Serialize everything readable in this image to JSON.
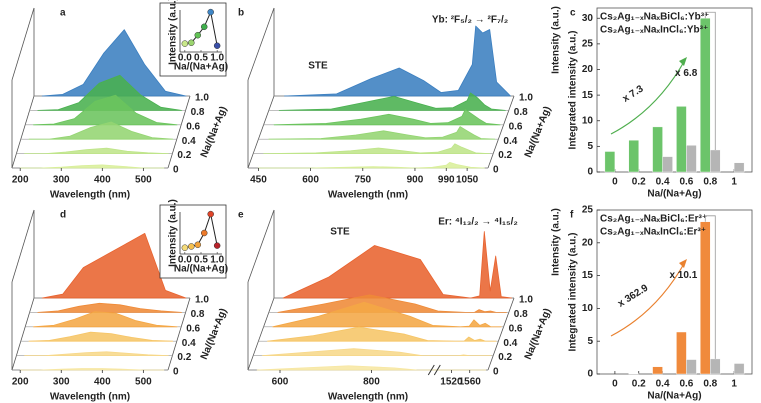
{
  "chart_data": [
    {
      "type": "waterfall",
      "panel_label": "a",
      "x_label": "Wavelength (nm)",
      "z_label": "Na/(Na+Ag)",
      "xlim": [
        180,
        560
      ],
      "xticks": [
        200,
        300,
        400,
        500
      ],
      "ylim": [
        0,
        100
      ],
      "x": [
        200,
        250,
        300,
        350,
        400,
        450,
        500,
        550
      ],
      "series": [
        {
          "name": "0",
          "color": "#d9ef9b",
          "values": [
            0,
            0,
            1,
            3,
            4,
            2,
            0,
            0
          ]
        },
        {
          "name": "0.2",
          "color": "#bfe58a",
          "values": [
            0,
            0,
            2,
            5,
            7,
            3,
            1,
            0
          ]
        },
        {
          "name": "0.4",
          "color": "#94d572",
          "values": [
            0,
            0,
            4,
            15,
            22,
            10,
            2,
            0
          ]
        },
        {
          "name": "0.6",
          "color": "#6bc45d",
          "values": [
            0,
            1,
            8,
            30,
            38,
            15,
            3,
            0
          ]
        },
        {
          "name": "0.8",
          "color": "#49b14f",
          "values": [
            0,
            1,
            10,
            35,
            45,
            20,
            4,
            0
          ]
        },
        {
          "name": "1.0",
          "color": "#3b7fc0",
          "values": [
            0,
            2,
            15,
            55,
            85,
            40,
            6,
            0
          ]
        }
      ],
      "inset": {
        "type": "scatter",
        "x_label": "Na/(Na+Ag)",
        "y_label": "Intensity (a.u.)",
        "xlim": [
          -0.15,
          1.15
        ],
        "xticks": [
          {
            "value": 0,
            "label": "0.0"
          },
          {
            "value": 0.5,
            "label": "0.5"
          },
          {
            "value": 1,
            "label": "1.0"
          }
        ],
        "ylim": [
          0,
          100
        ],
        "x": [
          0,
          0.2,
          0.4,
          0.6,
          0.8,
          1
        ],
        "values": [
          20,
          22,
          40,
          60,
          95,
          15
        ],
        "colors": [
          "#c9e88a",
          "#9bd56f",
          "#62c256",
          "#3fae4c",
          "#3f86c6",
          "#3a4fa8"
        ],
        "line_color": "#222"
      }
    },
    {
      "type": "waterfall",
      "panel_label": "b",
      "x_label": "Wavelength (nm)",
      "y_label": "Intensity (a.u.)",
      "z_label": "Na/(Na+Ag)",
      "xlim": [
        420,
        1110
      ],
      "xticks": [
        450,
        600,
        750,
        900,
        990,
        1050
      ],
      "ylim": [
        0,
        100
      ],
      "x": [
        450,
        600,
        700,
        780,
        850,
        900,
        950,
        990,
        1000,
        1020,
        1040,
        1060,
        1100
      ],
      "series": [
        {
          "name": "0",
          "color": "#d9ef9b",
          "values": [
            0,
            0,
            1,
            2,
            1,
            0,
            1,
            4,
            8,
            5,
            3,
            1,
            0
          ]
        },
        {
          "name": "0.2",
          "color": "#bfe58a",
          "values": [
            0,
            1,
            4,
            8,
            4,
            1,
            2,
            8,
            14,
            9,
            5,
            1,
            0
          ]
        },
        {
          "name": "0.4",
          "color": "#94d572",
          "values": [
            0,
            1,
            6,
            12,
            6,
            2,
            3,
            10,
            18,
            12,
            6,
            1,
            0
          ]
        },
        {
          "name": "0.6",
          "color": "#6bc45d",
          "values": [
            0,
            2,
            8,
            15,
            8,
            2,
            3,
            12,
            22,
            15,
            8,
            2,
            0
          ]
        },
        {
          "name": "0.8",
          "color": "#49b14f",
          "values": [
            0,
            2,
            12,
            20,
            10,
            3,
            4,
            14,
            25,
            18,
            8,
            2,
            0
          ]
        },
        {
          "name": "1.0",
          "color": "#3b7fc0",
          "values": [
            0,
            3,
            25,
            40,
            22,
            5,
            8,
            45,
            100,
            90,
            95,
            20,
            0
          ]
        }
      ],
      "annotations": [
        {
          "text": "STE"
        },
        {
          "text": "Yb: ²F₅/₂ → ²F₇/₂"
        }
      ]
    },
    {
      "type": "bar",
      "panel_label": "c",
      "x_label": "Na/(Na+Ag)",
      "y_label": "Integrated intensity (a.u.)",
      "xlim": [
        -0.15,
        1.15
      ],
      "xticks": [
        0,
        0.2,
        0.4,
        0.6,
        0.8,
        1
      ],
      "ylim": [
        0,
        32
      ],
      "yticks": [
        0,
        5,
        10,
        15,
        20,
        25,
        30
      ],
      "x": [
        0,
        0.2,
        0.4,
        0.6,
        0.8,
        1
      ],
      "series": [
        {
          "name": "Cs₂Ag₁₋ₓNaₓBiCl₆:Yb³⁺",
          "color": "#6cc46a",
          "values": [
            4,
            6.2,
            8.8,
            12.8,
            30,
            null
          ]
        },
        {
          "name": "Cs₂Ag₁₋ₓNaₓInCl₆:Yb³⁺",
          "color": "#b5b5b5",
          "values": [
            null,
            null,
            3,
            5.2,
            4.3,
            1.8
          ]
        }
      ],
      "annotations": [
        {
          "text": "x 7.3",
          "color": "#4fae4e"
        },
        {
          "text": "x 6.8",
          "color": "#8c8c8c"
        }
      ]
    },
    {
      "type": "waterfall",
      "panel_label": "d",
      "x_label": "Wavelength (nm)",
      "z_label": "Na/(Na+Ag)",
      "xlim": [
        180,
        560
      ],
      "xticks": [
        200,
        300,
        400,
        500
      ],
      "ylim": [
        0,
        100
      ],
      "x": [
        200,
        250,
        300,
        350,
        400,
        450,
        500,
        550
      ],
      "series": [
        {
          "name": "0",
          "color": "#f7e7a3",
          "values": [
            0,
            0,
            1,
            2,
            2,
            1,
            0,
            0
          ]
        },
        {
          "name": "0.2",
          "color": "#f7d88a",
          "values": [
            0,
            0,
            2,
            4,
            5,
            3,
            1,
            0
          ]
        },
        {
          "name": "0.4",
          "color": "#f6c566",
          "values": [
            0,
            1,
            6,
            12,
            10,
            5,
            1,
            0
          ]
        },
        {
          "name": "0.6",
          "color": "#f4a746",
          "values": [
            0,
            2,
            10,
            20,
            18,
            8,
            2,
            0
          ]
        },
        {
          "name": "0.8",
          "color": "#ef8a37",
          "values": [
            0,
            2,
            8,
            12,
            10,
            5,
            2,
            0
          ]
        },
        {
          "name": "1.0",
          "color": "#e8632f",
          "values": [
            0,
            5,
            40,
            55,
            70,
            85,
            10,
            0
          ]
        }
      ],
      "inset": {
        "type": "scatter",
        "x_label": "Na/(Na+Ag)",
        "y_label": "Intensity (a.u.)",
        "xlim": [
          -0.15,
          1.15
        ],
        "xticks": [
          {
            "value": 0,
            "label": "0.0"
          },
          {
            "value": 0.5,
            "label": "0.5"
          },
          {
            "value": 1,
            "label": "1.0"
          }
        ],
        "ylim": [
          0,
          100
        ],
        "x": [
          0,
          0.2,
          0.4,
          0.6,
          0.8,
          1
        ],
        "values": [
          15,
          18,
          22,
          50,
          95,
          20
        ],
        "colors": [
          "#f5dc7a",
          "#f5c04f",
          "#f2a23a",
          "#ec7a2a",
          "#e0452a",
          "#b8232a"
        ],
        "line_color": "#222"
      }
    },
    {
      "type": "waterfall",
      "panel_label": "e",
      "x_label": "Wavelength (nm)",
      "y_label": "Intensity (a.u.)",
      "z_label": "Na/(Na+Ag)",
      "xlim": [
        530,
        1600
      ],
      "xsegments": [
        [
          530,
          920
        ],
        [
          1500,
          1600
        ]
      ],
      "xticks": [
        600,
        800,
        1520,
        1560
      ],
      "ylim": [
        0,
        100
      ],
      "x": [
        550,
        650,
        750,
        850,
        900,
        1505,
        1525,
        1535,
        1548,
        1560,
        1572,
        1595
      ],
      "series": [
        {
          "name": "0",
          "color": "#f7e7a3",
          "values": [
            0,
            3,
            6,
            3,
            0,
            0,
            0,
            0,
            0,
            0,
            0,
            0
          ]
        },
        {
          "name": "0.2",
          "color": "#f7d88a",
          "values": [
            0,
            5,
            10,
            5,
            0,
            0,
            0,
            1,
            0,
            0,
            0,
            0
          ]
        },
        {
          "name": "0.4",
          "color": "#f6c566",
          "values": [
            0,
            8,
            20,
            10,
            1,
            0,
            0,
            6,
            1,
            3,
            0,
            0
          ]
        },
        {
          "name": "0.6",
          "color": "#f4a746",
          "values": [
            0,
            15,
            35,
            15,
            2,
            0,
            1,
            10,
            2,
            5,
            0,
            0
          ]
        },
        {
          "name": "0.8",
          "color": "#ef8a37",
          "values": [
            0,
            12,
            25,
            12,
            2,
            0,
            0,
            4,
            1,
            2,
            0,
            0
          ]
        },
        {
          "name": "1.0",
          "color": "#e8632f",
          "values": [
            0,
            30,
            75,
            55,
            5,
            0,
            3,
            95,
            10,
            60,
            2,
            0
          ]
        }
      ],
      "annotations": [
        {
          "text": "STE"
        },
        {
          "text": "Er: ⁴I₁₃/₂ → ⁴I₁₅/₂"
        }
      ]
    },
    {
      "type": "bar",
      "panel_label": "f",
      "x_label": "Na/(Na+Ag)",
      "y_label": "Integrated intensity (a.u.)",
      "xlim": [
        -0.15,
        1.15
      ],
      "xticks": [
        0,
        0.2,
        0.4,
        0.6,
        0.8,
        1
      ],
      "ylim": [
        0,
        25
      ],
      "yticks": [
        0,
        5,
        10,
        15,
        20,
        25
      ],
      "x": [
        0,
        0.2,
        0.4,
        0.6,
        0.8,
        1
      ],
      "series": [
        {
          "name": "Cs₂Ag₁₋ₓNaₓBiCl₆:Er³⁺",
          "color": "#f08a3c",
          "values": [
            null,
            0.05,
            1.1,
            6.4,
            23.2,
            null
          ]
        },
        {
          "name": "Cs₂Ag₁₋ₓNaₓInCl₆:Er³⁺",
          "color": "#b5b5b5",
          "values": [
            null,
            null,
            null,
            2.2,
            2.3,
            1.6
          ]
        }
      ],
      "annotations": [
        {
          "text": "x 362.9",
          "color": "#e9812f"
        },
        {
          "text": "x 10.1",
          "color": "#8c8c8c"
        }
      ]
    }
  ]
}
